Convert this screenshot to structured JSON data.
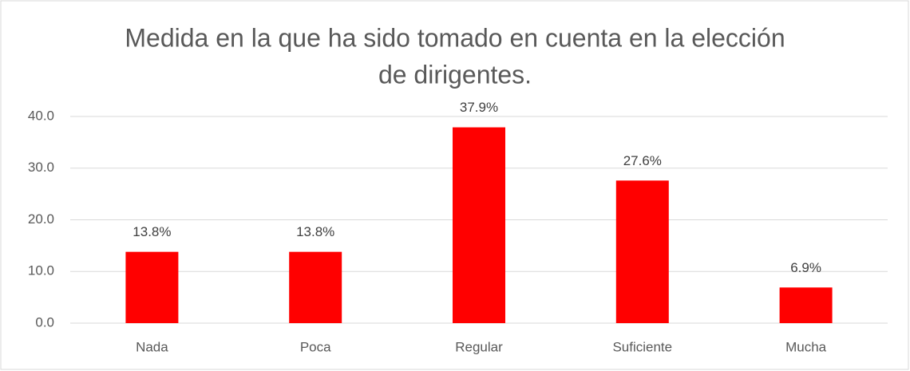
{
  "chart_data": {
    "type": "bar",
    "title": [
      "Medida en la que ha sido tomado en cuenta en la elección",
      "de dirigentes."
    ],
    "categories": [
      "Nada",
      "Poca",
      "Regular",
      "Suficiente",
      "Mucha"
    ],
    "values": [
      13.8,
      13.8,
      37.9,
      27.6,
      6.9
    ],
    "value_labels": [
      "13.8%",
      "13.8%",
      "37.9%",
      "27.6%",
      "6.9%"
    ],
    "color": "#ff0000",
    "ylim": [
      0,
      40
    ],
    "yticks": [
      {
        "value": 0,
        "label": "0.0"
      },
      {
        "value": 10,
        "label": "10.0"
      },
      {
        "value": 20,
        "label": "20.0"
      },
      {
        "value": 30,
        "label": "30.0"
      },
      {
        "value": 40,
        "label": "40.0"
      }
    ],
    "grid": true
  }
}
